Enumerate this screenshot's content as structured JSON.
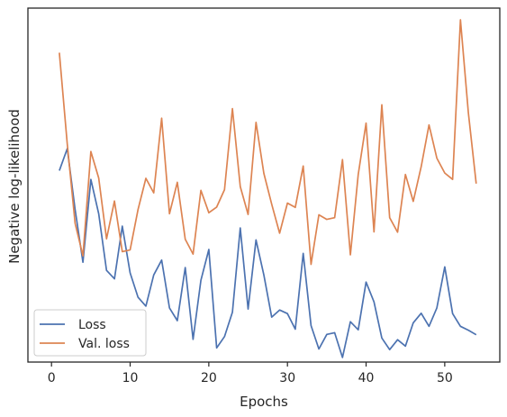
{
  "chart_data": {
    "type": "line",
    "title": "",
    "xlabel": "Epochs",
    "ylabel": "Negative log-likelihood",
    "xlim": [
      -3,
      57
    ],
    "ylim": [
      0,
      100
    ],
    "xticks": [
      0,
      10,
      20,
      30,
      40,
      50
    ],
    "yticks_shown": false,
    "grid": false,
    "legend_position": "bottom-left",
    "series": [
      {
        "name": "Loss",
        "color": "#4c72b0",
        "x": [
          1,
          2,
          3,
          4,
          5,
          6,
          7,
          8,
          9,
          10,
          11,
          12,
          13,
          14,
          15,
          16,
          17,
          18,
          19,
          20,
          21,
          22,
          23,
          24,
          25,
          26,
          27,
          28,
          29,
          30,
          31,
          32,
          33,
          34,
          35,
          36,
          37,
          38,
          39,
          40,
          41,
          42,
          43,
          44,
          45,
          46,
          47,
          48,
          49,
          50,
          51,
          52,
          53,
          54
        ],
        "values": [
          54.1,
          60.3,
          43.1,
          28.2,
          51.6,
          41.9,
          25.9,
          23.5,
          38.4,
          25.2,
          18.3,
          15.8,
          24.6,
          28.8,
          15.3,
          11.7,
          26.7,
          6.4,
          23.1,
          31.8,
          4.0,
          7.2,
          14.1,
          37.9,
          15.0,
          34.5,
          24.6,
          12.7,
          14.7,
          13.7,
          9.3,
          30.7,
          10.3,
          3.7,
          7.8,
          8.3,
          1.3,
          11.4,
          9.1,
          22.6,
          17.0,
          6.8,
          3.5,
          6.3,
          4.5,
          11.1,
          13.8,
          10.1,
          15.3,
          26.9,
          13.7,
          10.1,
          9.0,
          7.7
        ]
      },
      {
        "name": "Val. loss",
        "color": "#dd8452",
        "x": [
          1,
          2,
          3,
          4,
          5,
          6,
          7,
          8,
          9,
          10,
          11,
          12,
          13,
          14,
          15,
          16,
          17,
          18,
          19,
          20,
          21,
          22,
          23,
          24,
          25,
          26,
          27,
          28,
          29,
          30,
          31,
          32,
          33,
          34,
          35,
          36,
          37,
          38,
          39,
          40,
          41,
          42,
          43,
          44,
          45,
          46,
          47,
          48,
          49,
          50,
          51,
          52,
          53,
          54
        ],
        "values": [
          87.4,
          61.6,
          39.2,
          30.0,
          59.5,
          52.0,
          34.8,
          45.5,
          31.2,
          31.7,
          43.1,
          51.9,
          47.8,
          68.9,
          41.9,
          50.8,
          34.7,
          30.5,
          48.5,
          42.2,
          43.8,
          48.7,
          71.6,
          49.6,
          41.7,
          67.7,
          53.3,
          44.6,
          36.4,
          44.9,
          43.7,
          55.4,
          27.6,
          41.6,
          40.3,
          40.8,
          57.2,
          30.3,
          53.0,
          67.5,
          36.8,
          72.7,
          40.8,
          36.7,
          53.0,
          45.4,
          55.2,
          67.0,
          57.6,
          53.4,
          51.6,
          96.7,
          70.4,
          50.4
        ]
      }
    ]
  }
}
